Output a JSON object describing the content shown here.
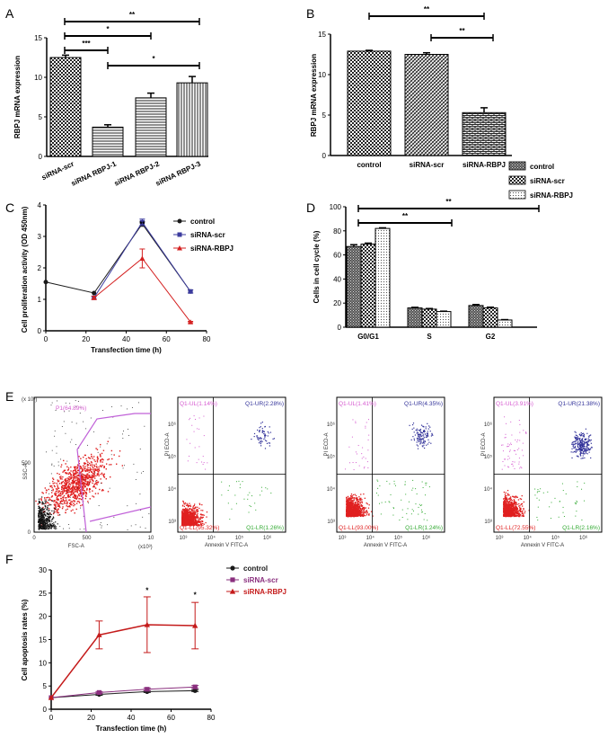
{
  "panel_labels": [
    "A",
    "B",
    "C",
    "D",
    "E",
    "F"
  ],
  "colors": {
    "control": "#1a1a1a",
    "scr_c": "#3b3b9e",
    "rbpj_c": "#d42020",
    "scr_f": "#8a2f7e",
    "rbpj_f": "#c41a1a",
    "ul": "#d65bd0",
    "ur": "#33339a",
    "ll": "#e02020",
    "lr": "#33aa33",
    "gate": "#c060d8"
  },
  "chart_data": [
    {
      "id": "A",
      "type": "bar",
      "ylabel": "RBPJ mRNA expression",
      "ylim": [
        0,
        15
      ],
      "yticks": [
        "0",
        "5",
        "10",
        "15"
      ],
      "categories": [
        "siRNA-scr",
        "siRNA RBPJ-1",
        "siRNA RBPJ-2",
        "siRNA RBPJ-3"
      ],
      "values": [
        12.5,
        3.7,
        7.4,
        9.3
      ],
      "errors": [
        0.3,
        0.3,
        0.6,
        0.8
      ],
      "significance": [
        "**",
        "***",
        "*",
        "*"
      ]
    },
    {
      "id": "B",
      "type": "bar",
      "ylabel": "RBPJ mRNA expression",
      "ylim": [
        0,
        15
      ],
      "yticks": [
        "0",
        "5",
        "10",
        "15"
      ],
      "categories": [
        "control",
        "siRNA-scr",
        "siRNA-RBPJ"
      ],
      "values": [
        12.9,
        12.5,
        5.3
      ],
      "errors": [
        0.1,
        0.2,
        0.6
      ],
      "significance": [
        "**",
        "**"
      ]
    },
    {
      "id": "C",
      "type": "line",
      "xlabel": "Transfection time (h)",
      "ylabel": "Cell proliferation activity (OD 450nm)",
      "xlim": [
        0,
        80
      ],
      "ylim": [
        0,
        4
      ],
      "xticks": [
        "0",
        "20",
        "40",
        "60",
        "80"
      ],
      "yticks": [
        "0",
        "1",
        "2",
        "3",
        "4"
      ],
      "x": [
        0,
        24,
        48,
        72
      ],
      "series": [
        {
          "name": "control",
          "values": [
            1.55,
            1.2,
            3.4,
            1.25
          ],
          "errors": [
            0,
            0,
            0.08,
            0.05
          ]
        },
        {
          "name": "siRNA-scr",
          "values": [
            null,
            1.05,
            3.45,
            1.25
          ],
          "errors": [
            0,
            0.05,
            0.1,
            0.05
          ]
        },
        {
          "name": "siRNA-RBPJ",
          "values": [
            null,
            1.05,
            2.3,
            0.28
          ],
          "errors": [
            0,
            0.05,
            0.3,
            0.02
          ]
        }
      ],
      "annotations": [
        "**"
      ]
    },
    {
      "id": "D",
      "type": "bar",
      "ylabel": "Cells in cell cycle (%)",
      "ylim": [
        0,
        100
      ],
      "yticks": [
        "0",
        "20",
        "40",
        "60",
        "80",
        "100"
      ],
      "categories": [
        "G0/G1",
        "S",
        "G2"
      ],
      "series": [
        {
          "name": "control",
          "values": [
            67,
            16,
            18
          ],
          "errors": [
            1.5,
            0.5,
            0.8
          ]
        },
        {
          "name": "siRNA-scr",
          "values": [
            69,
            15,
            16
          ],
          "errors": [
            0.8,
            0.5,
            0.6
          ]
        },
        {
          "name": "siRNA-RBPJ",
          "values": [
            82,
            13,
            6
          ],
          "errors": [
            0.5,
            0.3,
            0.3
          ]
        }
      ],
      "significance": [
        "**",
        "**"
      ]
    },
    {
      "id": "F",
      "type": "line",
      "xlabel": "Transfection time (h)",
      "ylabel": "Cell apoptosis rates (%)",
      "xlim": [
        0,
        80
      ],
      "ylim": [
        0,
        30
      ],
      "xticks": [
        "0",
        "20",
        "40",
        "60",
        "80"
      ],
      "yticks": [
        "0",
        "5",
        "10",
        "15",
        "20",
        "25",
        "30"
      ],
      "x": [
        0,
        24,
        48,
        72
      ],
      "series": [
        {
          "name": "control",
          "values": [
            2.5,
            3.2,
            3.8,
            4.0
          ],
          "errors": [
            0,
            0.2,
            0.2,
            0.2
          ]
        },
        {
          "name": "siRNA-scr",
          "values": [
            2.5,
            3.6,
            4.3,
            4.8
          ],
          "errors": [
            0,
            0.2,
            0.3,
            0.3
          ]
        },
        {
          "name": "siRNA-RBPJ",
          "values": [
            2.5,
            16,
            18.2,
            18
          ],
          "errors": [
            0,
            3,
            6,
            5
          ]
        }
      ],
      "annotations": [
        "*",
        "*"
      ]
    }
  ],
  "flow": {
    "fsc": {
      "gate_label": "P1(64.89%)",
      "xlabel": "FSC-A",
      "ylabel": "SSC-A",
      "yexp": "(x 10³)",
      "xexp": "(x10³)",
      "xticks": [
        "0",
        "500",
        "10"
      ],
      "yticks": [
        "0",
        "500"
      ]
    },
    "quads": [
      {
        "ul": "Q1-UL(1.14%)",
        "ur": "Q1-UR(2.28%)",
        "ll": "Q1-LL(95.32%)",
        "lr": "Q1-LR(1.26%)"
      },
      {
        "ul": "Q1-UL(1.41%)",
        "ur": "Q1-UR(4.35%)",
        "ll": "Q1-LL(93.00%)",
        "lr": "Q1-LR(1.24%)"
      },
      {
        "ul": "Q1-UL(3.91%)",
        "ur": "Q1-UR(21.38%)",
        "ll": "Q1-LL(72.55%)",
        "lr": "Q1-LR(2.16%)"
      }
    ],
    "quad_xlabel": "Annexin V FITC-A",
    "quad_ylabel": "PI ECD-A",
    "quad_xticks": [
      "10³",
      "10⁴",
      "10⁵",
      "10⁶"
    ],
    "quad_yticks": [
      "10³",
      "10⁴",
      "10⁵",
      "10⁶"
    ]
  }
}
